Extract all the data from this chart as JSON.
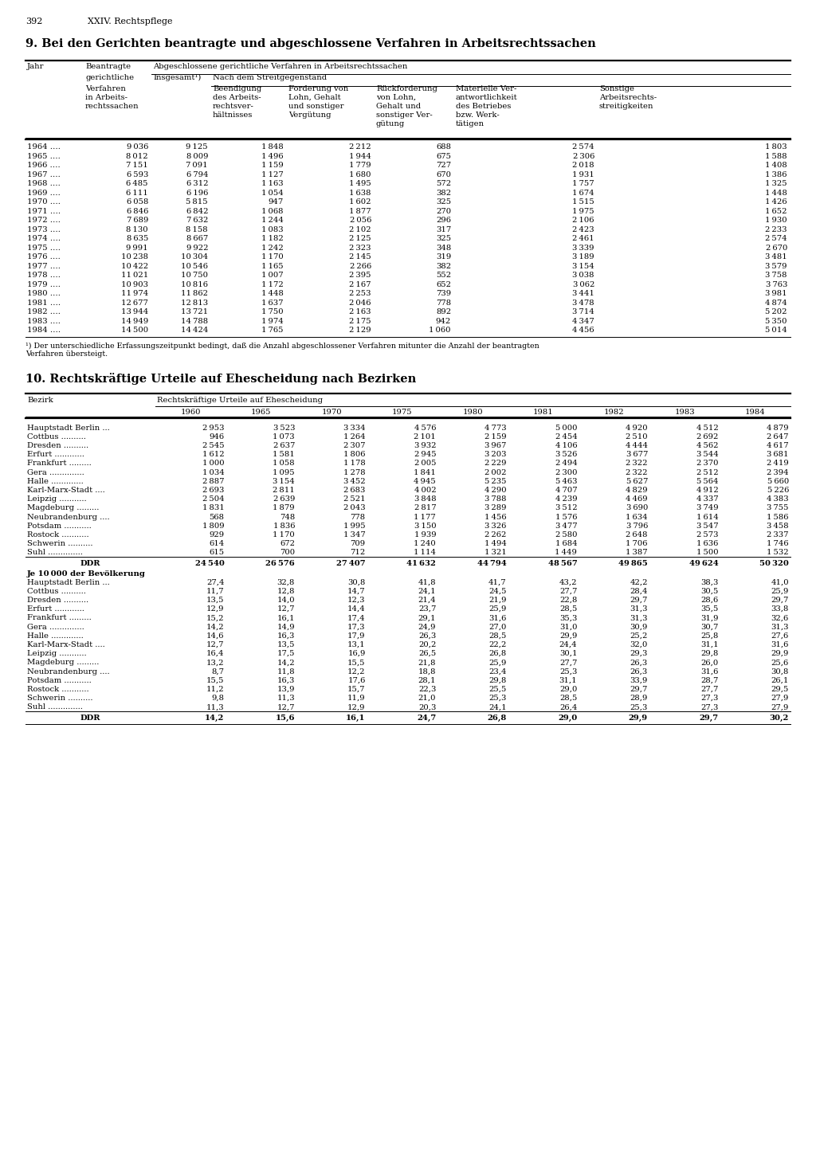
{
  "page_header_num": "392",
  "page_header_txt": "XXIV. Rechtspflege",
  "title1": "9. Bei den Gerichten beantragte und abgeschlossene Verfahren in Arbeitsrechtssachen",
  "title2": "10. Rechtskräftige Urteile auf Ehescheidung nach Bezirken",
  "table1": {
    "rows": [
      [
        "1964 ….",
        9036,
        9125,
        1848,
        2212,
        688,
        2574,
        1803
      ],
      [
        "1965 ….",
        8012,
        8009,
        1496,
        1944,
        675,
        2306,
        1588
      ],
      [
        "1966 ….",
        7151,
        7091,
        1159,
        1779,
        727,
        2018,
        1408
      ],
      [
        "1967 ….",
        6593,
        6794,
        1127,
        1680,
        670,
        1931,
        1386
      ],
      [
        "1968 ….",
        6485,
        6312,
        1163,
        1495,
        572,
        1757,
        1325
      ],
      [
        "1969 ….",
        6111,
        6196,
        1054,
        1638,
        382,
        1674,
        1448
      ],
      [
        "1970 ….",
        6058,
        5815,
        947,
        1602,
        325,
        1515,
        1426
      ],
      [
        "1971 ….",
        6846,
        6842,
        1068,
        1877,
        270,
        1975,
        1652
      ],
      [
        "1972 ….",
        7689,
        7632,
        1244,
        2056,
        296,
        2106,
        1930
      ],
      [
        "1973 ….",
        8130,
        8158,
        1083,
        2102,
        317,
        2423,
        2233
      ],
      [
        "1974 ….",
        8635,
        8667,
        1182,
        2125,
        325,
        2461,
        2574
      ],
      [
        "1975 ….",
        9991,
        9922,
        1242,
        2323,
        348,
        3339,
        2670
      ],
      [
        "1976 ….",
        10238,
        10304,
        1170,
        2145,
        319,
        3189,
        3481
      ],
      [
        "1977 ….",
        10422,
        10546,
        1165,
        2266,
        382,
        3154,
        3579
      ],
      [
        "1978 ….",
        11021,
        10750,
        1007,
        2395,
        552,
        3038,
        3758
      ],
      [
        "1979 ….",
        10903,
        10816,
        1172,
        2167,
        652,
        3062,
        3763
      ],
      [
        "1980 ….",
        11974,
        11862,
        1448,
        2253,
        739,
        3441,
        3981
      ],
      [
        "1981 ….",
        12677,
        12813,
        1637,
        2046,
        778,
        3478,
        4874
      ],
      [
        "1982 ….",
        13944,
        13721,
        1750,
        2163,
        892,
        3714,
        5202
      ],
      [
        "1983 ….",
        14949,
        14788,
        1974,
        2175,
        942,
        4347,
        5350
      ],
      [
        "1984 ….",
        14500,
        14424,
        1765,
        2129,
        1060,
        4456,
        5014
      ]
    ],
    "footnote_line1": "¹) Der unterschiedliche Erfassungszeitpunkt bedingt, daß die Anzahl abgeschlossener Verfahren mitunter die Anzahl der beantragten",
    "footnote_line2": "Verfahren übersteigt."
  },
  "table2": {
    "years": [
      "1960",
      "1965",
      "1970",
      "1975",
      "1980",
      "1981",
      "1982",
      "1983",
      "1984"
    ],
    "bezirke": [
      "Hauptstadt Berlin ...",
      "Cottbus ..........",
      "Dresden ..........",
      "Erfurt ............",
      "Frankfurt .........",
      "Gera ..............",
      "Halle .............",
      "Karl-Marx-Stadt ....",
      "Leipzig ...........",
      "Magdeburg .........",
      "Neubrandenburg ....",
      "Potsdam ...........",
      "Rostock ...........",
      "Schwerin ..........",
      "Suhl .............."
    ],
    "abs_data": [
      [
        2953,
        3523,
        3334,
        4576,
        4773,
        5000,
        4920,
        4512,
        4879
      ],
      [
        946,
        1073,
        1264,
        2101,
        2159,
        2454,
        2510,
        2692,
        2647
      ],
      [
        2545,
        2637,
        2307,
        3932,
        3967,
        4106,
        4444,
        4562,
        4617
      ],
      [
        1612,
        1581,
        1806,
        2945,
        3203,
        3526,
        3677,
        3544,
        3681
      ],
      [
        1000,
        1058,
        1178,
        2005,
        2229,
        2494,
        2322,
        2370,
        2419
      ],
      [
        1034,
        1095,
        1278,
        1841,
        2002,
        2300,
        2322,
        2512,
        2394
      ],
      [
        2887,
        3154,
        3452,
        4945,
        5235,
        5463,
        5627,
        5564,
        5660
      ],
      [
        2693,
        2811,
        2683,
        4002,
        4290,
        4707,
        4829,
        4912,
        5226
      ],
      [
        2504,
        2639,
        2521,
        3848,
        3788,
        4239,
        4469,
        4337,
        4383
      ],
      [
        1831,
        1879,
        2043,
        2817,
        3289,
        3512,
        3690,
        3749,
        3755
      ],
      [
        568,
        748,
        778,
        1177,
        1456,
        1576,
        1634,
        1614,
        1586
      ],
      [
        1809,
        1836,
        1995,
        3150,
        3326,
        3477,
        3796,
        3547,
        3458
      ],
      [
        929,
        1170,
        1347,
        1939,
        2262,
        2580,
        2648,
        2573,
        2337
      ],
      [
        614,
        672,
        709,
        1240,
        1494,
        1684,
        1706,
        1636,
        1746
      ],
      [
        615,
        700,
        712,
        1114,
        1321,
        1449,
        1387,
        1500,
        1532
      ]
    ],
    "ddr_abs": [
      24540,
      26576,
      27407,
      41632,
      44794,
      48567,
      49865,
      49624,
      50320
    ],
    "per10000_data": [
      [
        27.4,
        32.8,
        30.8,
        41.8,
        41.7,
        43.2,
        42.2,
        38.3,
        41.0
      ],
      [
        11.7,
        12.8,
        14.7,
        24.1,
        24.5,
        27.7,
        28.4,
        30.5,
        25.9
      ],
      [
        13.5,
        14.0,
        12.3,
        21.4,
        21.9,
        22.8,
        29.7,
        28.6,
        29.7
      ],
      [
        12.9,
        12.7,
        14.4,
        23.7,
        25.9,
        28.5,
        31.3,
        35.5,
        33.8
      ],
      [
        15.2,
        16.1,
        17.4,
        29.1,
        31.6,
        35.3,
        31.3,
        31.9,
        32.6
      ],
      [
        14.2,
        14.9,
        17.3,
        24.9,
        27.0,
        31.0,
        30.9,
        30.7,
        31.3
      ],
      [
        14.6,
        16.3,
        17.9,
        26.3,
        28.5,
        29.9,
        25.2,
        25.8,
        27.6
      ],
      [
        12.7,
        13.5,
        13.1,
        20.2,
        22.2,
        24.4,
        32.0,
        31.1,
        31.6
      ],
      [
        16.4,
        17.5,
        16.9,
        26.5,
        26.8,
        30.1,
        29.3,
        29.8,
        29.9
      ],
      [
        13.2,
        14.2,
        15.5,
        21.8,
        25.9,
        27.7,
        26.3,
        26.0,
        25.6
      ],
      [
        8.7,
        11.8,
        12.2,
        18.8,
        23.4,
        25.3,
        26.3,
        31.6,
        30.8
      ],
      [
        15.5,
        16.3,
        17.6,
        28.1,
        29.8,
        31.1,
        33.9,
        28.7,
        26.1
      ],
      [
        11.2,
        13.9,
        15.7,
        22.3,
        25.5,
        29.0,
        29.7,
        27.7,
        29.5
      ],
      [
        9.8,
        11.3,
        11.9,
        21.0,
        25.3,
        28.5,
        28.9,
        27.3,
        27.9
      ],
      [
        11.3,
        12.7,
        12.9,
        20.3,
        24.1,
        26.4,
        25.3,
        27.3,
        27.9
      ]
    ],
    "ddr_per10000": [
      14.2,
      15.6,
      16.1,
      24.7,
      26.8,
      29.0,
      29.9,
      29.7,
      30.2
    ]
  }
}
